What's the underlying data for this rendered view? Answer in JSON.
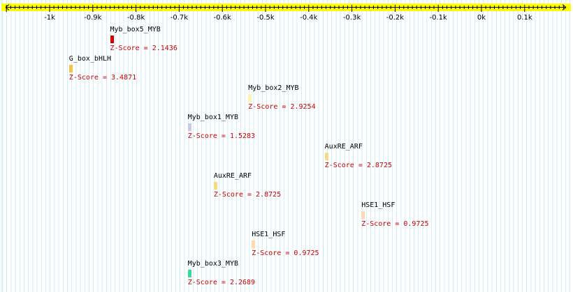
{
  "axis": {
    "ticks": [
      "-1k",
      "-0.9k",
      "-0.8k",
      "-0.7k",
      "-0.6k",
      "-0.5k",
      "-0.4k",
      "-0.3k",
      "-0.2k",
      "-0.1k",
      "0k",
      "0.1k"
    ],
    "tick_values": [
      -1000,
      -900,
      -800,
      -700,
      -600,
      -500,
      -400,
      -300,
      -200,
      -100,
      0,
      100
    ],
    "range": [
      -1110,
      200
    ],
    "bar_color": "#ffff00"
  },
  "sites": [
    {
      "name": "Myb_box5_MYB",
      "score": "Z-Score = 2.1436",
      "position": -860,
      "color": "#cc0000"
    },
    {
      "name": "G_box_bHLH",
      "score": "Z-Score = 3.4871",
      "position": -955,
      "color": "#f5c542"
    },
    {
      "name": "Myb_box2_MYB",
      "score": "Z-Score = 2.9254",
      "position": -540,
      "color": "#fff3b0"
    },
    {
      "name": "Myb_box1_MYB",
      "score": "Z-Score = 1.5283",
      "position": -680,
      "color": "#c9c9e8"
    },
    {
      "name": "AuxRE_ARF",
      "score": "Z-Score = 2.8725",
      "position": -363,
      "color": "#f5dc82"
    },
    {
      "name": "AuxRE_ARF",
      "score": "Z-Score = 2.8725",
      "position": -620,
      "color": "#f5dc82"
    },
    {
      "name": "HSE1_HSF",
      "score": "Z-Score = 0.9725",
      "position": -278,
      "color": "#ffd9b0"
    },
    {
      "name": "HSE1_HSF",
      "score": "Z-Score = 0.9725",
      "position": -532,
      "color": "#ffd9b0"
    },
    {
      "name": "Myb_box3_MYB",
      "score": "Z-Score = 2.2689",
      "position": -680,
      "color": "#33dd99"
    }
  ]
}
